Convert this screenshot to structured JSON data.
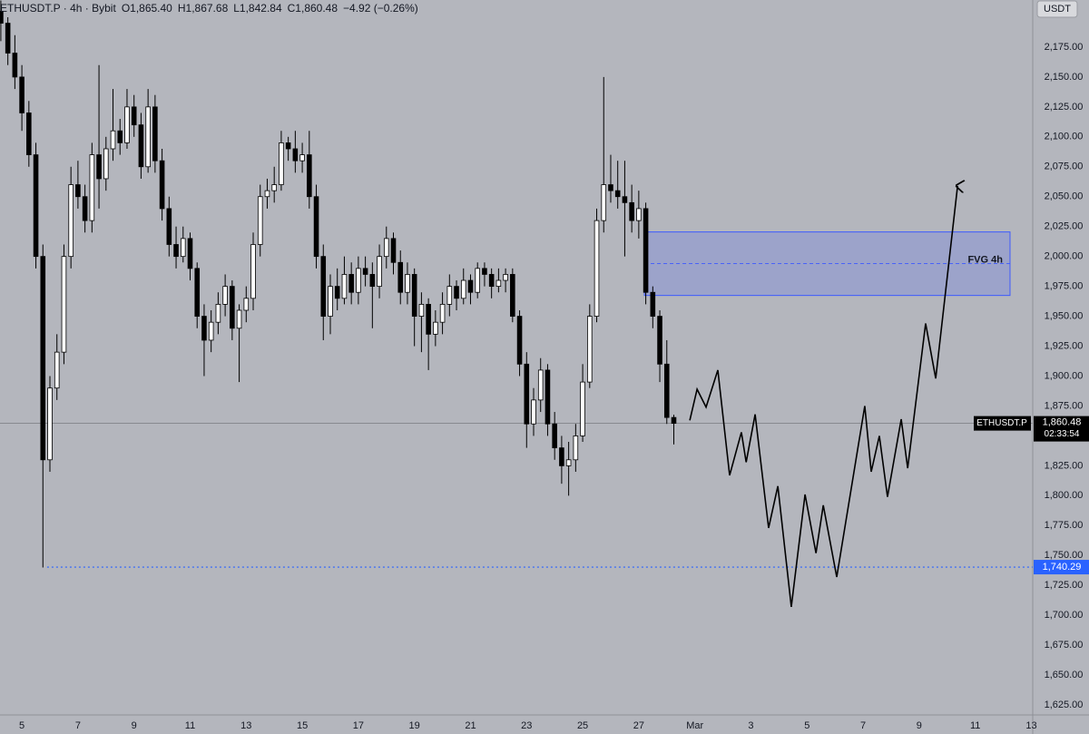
{
  "chart_data": {
    "type": "candlestick",
    "header": {
      "symbol": "ETHUSDT.P · 4h · Bybit",
      "open": "O1,865.40",
      "high": "H1,867.68",
      "low": "L1,842.84",
      "close": "C1,860.48",
      "change": "−4.92 (−0.26%)"
    },
    "currency": "USDT",
    "background": "#b4b6bd",
    "up_color": "#ffffff",
    "down_color": "#000000",
    "wick_color": "#000000",
    "candles": [
      [
        4.25,
        2205,
        2214,
        2180,
        2195
      ],
      [
        4.5,
        2195,
        2200,
        2160,
        2170
      ],
      [
        4.75,
        2170,
        2185,
        2140,
        2150
      ],
      [
        5,
        2150,
        2160,
        2105,
        2120
      ],
      [
        5.25,
        2120,
        2130,
        2075,
        2085
      ],
      [
        5.5,
        2085,
        2095,
        1990,
        2000
      ],
      [
        5.75,
        2000,
        2010,
        1740,
        1830
      ],
      [
        6,
        1830,
        1900,
        1820,
        1890
      ],
      [
        6.25,
        1890,
        1935,
        1880,
        1920
      ],
      [
        6.5,
        1920,
        2010,
        1910,
        2000
      ],
      [
        6.75,
        2000,
        2075,
        1990,
        2060
      ],
      [
        7,
        2060,
        2080,
        2040,
        2050
      ],
      [
        7.25,
        2050,
        2060,
        2020,
        2030
      ],
      [
        7.5,
        2030,
        2095,
        2020,
        2085
      ],
      [
        7.75,
        2085,
        2160,
        2040,
        2065
      ],
      [
        8,
        2065,
        2100,
        2055,
        2090
      ],
      [
        8.25,
        2090,
        2140,
        2080,
        2105
      ],
      [
        8.5,
        2105,
        2115,
        2085,
        2095
      ],
      [
        8.75,
        2095,
        2140,
        2090,
        2125
      ],
      [
        9,
        2125,
        2135,
        2100,
        2110
      ],
      [
        9.25,
        2110,
        2120,
        2065,
        2075
      ],
      [
        9.5,
        2075,
        2140,
        2070,
        2125
      ],
      [
        9.75,
        2125,
        2135,
        2070,
        2080
      ],
      [
        10,
        2080,
        2090,
        2030,
        2040
      ],
      [
        10.25,
        2040,
        2050,
        2000,
        2010
      ],
      [
        10.5,
        2010,
        2025,
        1990,
        2000
      ],
      [
        10.75,
        2000,
        2025,
        1995,
        2015
      ],
      [
        11,
        2015,
        2020,
        1980,
        1990
      ],
      [
        11.25,
        1990,
        1995,
        1940,
        1950
      ],
      [
        11.5,
        1950,
        1960,
        1900,
        1930
      ],
      [
        11.75,
        1930,
        1955,
        1920,
        1945
      ],
      [
        12,
        1945,
        1970,
        1935,
        1960
      ],
      [
        12.25,
        1960,
        1985,
        1950,
        1975
      ],
      [
        12.5,
        1975,
        1980,
        1930,
        1940
      ],
      [
        12.75,
        1940,
        1960,
        1895,
        1955
      ],
      [
        13,
        1955,
        1975,
        1945,
        1965
      ],
      [
        13.25,
        1965,
        2020,
        1955,
        2010
      ],
      [
        13.5,
        2010,
        2060,
        2000,
        2050
      ],
      [
        13.75,
        2050,
        2065,
        2040,
        2055
      ],
      [
        14,
        2055,
        2075,
        2045,
        2060
      ],
      [
        14.25,
        2060,
        2105,
        2055,
        2095
      ],
      [
        14.5,
        2095,
        2100,
        2080,
        2090
      ],
      [
        14.75,
        2090,
        2105,
        2070,
        2080
      ],
      [
        15,
        2080,
        2095,
        2070,
        2085
      ],
      [
        15.25,
        2085,
        2105,
        2040,
        2050
      ],
      [
        15.5,
        2050,
        2060,
        1990,
        2000
      ],
      [
        15.75,
        2000,
        2010,
        1930,
        1950
      ],
      [
        16,
        1950,
        1985,
        1935,
        1975
      ],
      [
        16.25,
        1975,
        1990,
        1955,
        1965
      ],
      [
        16.5,
        1965,
        2000,
        1960,
        1985
      ],
      [
        16.75,
        1985,
        1995,
        1960,
        1970
      ],
      [
        17,
        1970,
        2000,
        1960,
        1990
      ],
      [
        17.25,
        1990,
        2000,
        1975,
        1985
      ],
      [
        17.5,
        1985,
        1995,
        1940,
        1975
      ],
      [
        17.75,
        1975,
        2010,
        1965,
        2000
      ],
      [
        18,
        2000,
        2025,
        1990,
        2015
      ],
      [
        18.25,
        2015,
        2020,
        1985,
        1995
      ],
      [
        18.5,
        1995,
        2005,
        1960,
        1970
      ],
      [
        18.75,
        1970,
        1995,
        1960,
        1985
      ],
      [
        19,
        1985,
        1990,
        1925,
        1950
      ],
      [
        19.25,
        1950,
        1970,
        1920,
        1960
      ],
      [
        19.5,
        1960,
        1965,
        1905,
        1935
      ],
      [
        19.75,
        1935,
        1955,
        1925,
        1945
      ],
      [
        20,
        1945,
        1970,
        1935,
        1960
      ],
      [
        20.25,
        1960,
        1985,
        1950,
        1975
      ],
      [
        20.5,
        1975,
        1980,
        1955,
        1965
      ],
      [
        20.75,
        1965,
        1990,
        1960,
        1980
      ],
      [
        21,
        1980,
        1985,
        1960,
        1970
      ],
      [
        21.25,
        1970,
        1995,
        1965,
        1990
      ],
      [
        21.5,
        1990,
        1995,
        1975,
        1985
      ],
      [
        21.75,
        1985,
        1990,
        1965,
        1975
      ],
      [
        22,
        1975,
        1990,
        1970,
        1980
      ],
      [
        22.25,
        1980,
        1990,
        1970,
        1985
      ],
      [
        22.5,
        1985,
        1990,
        1945,
        1950
      ],
      [
        22.75,
        1950,
        1955,
        1900,
        1910
      ],
      [
        23,
        1910,
        1920,
        1840,
        1860
      ],
      [
        23.25,
        1860,
        1890,
        1850,
        1880
      ],
      [
        23.5,
        1880,
        1915,
        1870,
        1905
      ],
      [
        23.75,
        1905,
        1910,
        1850,
        1860
      ],
      [
        24,
        1860,
        1870,
        1830,
        1840
      ],
      [
        24.25,
        1840,
        1850,
        1810,
        1825
      ],
      [
        24.5,
        1825,
        1845,
        1800,
        1830
      ],
      [
        24.75,
        1830,
        1860,
        1820,
        1850
      ],
      [
        25,
        1850,
        1910,
        1845,
        1895
      ],
      [
        25.25,
        1895,
        1960,
        1890,
        1950
      ],
      [
        25.5,
        1950,
        2040,
        1945,
        2030
      ],
      [
        25.75,
        2030,
        2150,
        2020,
        2060
      ],
      [
        26,
        2060,
        2085,
        2045,
        2055
      ],
      [
        26.25,
        2055,
        2080,
        2040,
        2050
      ],
      [
        26.5,
        2050,
        2080,
        2000,
        2045
      ],
      [
        26.75,
        2045,
        2060,
        2020,
        2030
      ],
      [
        27,
        2030,
        2055,
        2015,
        2040
      ],
      [
        27.25,
        2040,
        2045,
        1960,
        1970
      ],
      [
        27.5,
        1970,
        1975,
        1940,
        1950
      ],
      [
        27.75,
        1950,
        1955,
        1895,
        1910
      ],
      [
        28,
        1910,
        1930,
        1860,
        1865.4
      ],
      [
        28.25,
        1865.4,
        1867.68,
        1842.84,
        1860.48
      ]
    ],
    "last_price": {
      "value": 1860.48,
      "label": "1,860.48",
      "symbol": "ETHUSDT.P",
      "countdown": "02:33:54",
      "line_color": "#7a7c82"
    },
    "level": {
      "value": 1740.29,
      "label": "1,740.29",
      "start_x": 5.9,
      "color": "#2962ff"
    },
    "zone": {
      "label": "FVG 4h",
      "x": [
        27.2,
        40.24
      ],
      "y": [
        1967.4,
        2020.5
      ],
      "mid": 1994,
      "color": "#3d5afe"
    },
    "projection": {
      "x": [
        28.82,
        29.08,
        29.4,
        29.82,
        30.24,
        30.66,
        30.83,
        31.15,
        31.63,
        31.96,
        32.44,
        32.93,
        33.32,
        33.58,
        34.06,
        35.06,
        35.29,
        35.58,
        35.87,
        36.36,
        36.59,
        37.23,
        37.59,
        38.37
      ],
      "y": [
        1863,
        1889,
        1874,
        1905,
        1817,
        1853,
        1828,
        1868,
        1773,
        1808,
        1707,
        1801,
        1752,
        1792,
        1732,
        1875,
        1820,
        1850,
        1799,
        1864,
        1823,
        1944,
        1898,
        2059
      ],
      "color": "#000000"
    },
    "xlim": [
      4.22,
      41.05
    ],
    "ylim": [
      1616.7,
      2214.4
    ],
    "xticks": [
      5,
      7,
      9,
      11,
      13,
      15,
      17,
      19,
      21,
      23,
      25,
      27,
      {
        "value": 29,
        "label": "Mar"
      },
      {
        "value": 31,
        "label": "3"
      },
      {
        "value": 33,
        "label": "5"
      },
      {
        "value": 35,
        "label": "7"
      },
      {
        "value": 37,
        "label": "9"
      },
      {
        "value": 39,
        "label": "11"
      },
      {
        "value": 41,
        "label": "13"
      }
    ],
    "yticks": [
      {
        "value": 2175,
        "label": "2,175.00"
      },
      {
        "value": 2150,
        "label": "2,150.00"
      },
      {
        "value": 2125,
        "label": "2,125.00"
      },
      {
        "value": 2100,
        "label": "2,100.00"
      },
      {
        "value": 2075,
        "label": "2,075.00"
      },
      {
        "value": 2050,
        "label": "2,050.00"
      },
      {
        "value": 2025,
        "label": "2,025.00"
      },
      {
        "value": 2000,
        "label": "2,000.00"
      },
      {
        "value": 1975,
        "label": "1,975.00"
      },
      {
        "value": 1950,
        "label": "1,950.00"
      },
      {
        "value": 1925,
        "label": "1,925.00"
      },
      {
        "value": 1900,
        "label": "1,900.00"
      },
      {
        "value": 1875,
        "label": "1,875.00"
      },
      {
        "value": 1850,
        "label": "1,850.00"
      },
      {
        "value": 1825,
        "label": "1,825.00"
      },
      {
        "value": 1800,
        "label": "1,800.00"
      },
      {
        "value": 1775,
        "label": "1,775.00"
      },
      {
        "value": 1750,
        "label": "1,750.00"
      },
      {
        "value": 1725,
        "label": "1,725.00"
      },
      {
        "value": 1700,
        "label": "1,700.00"
      },
      {
        "value": 1675,
        "label": "1,675.00"
      },
      {
        "value": 1650,
        "label": "1,650.00"
      },
      {
        "value": 1625,
        "label": "1,625.00"
      }
    ],
    "grid": false
  }
}
